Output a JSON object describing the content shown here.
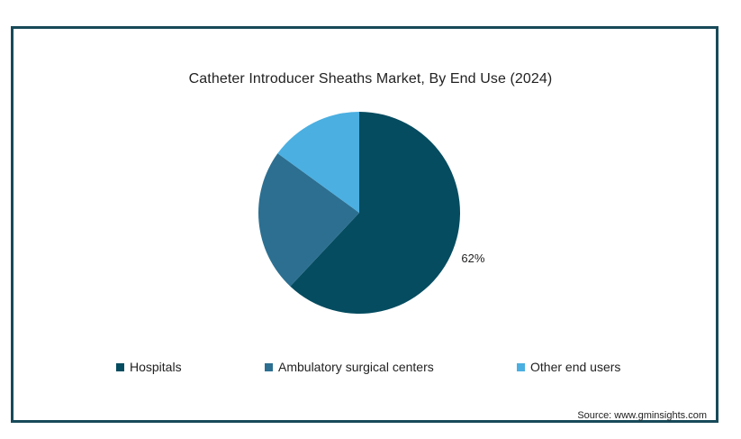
{
  "chart_data": {
    "type": "pie",
    "title": "Catheter Introducer Sheaths Market, By End Use (2024)",
    "slices": [
      {
        "name": "Hospitals",
        "value": 62,
        "label": "62%",
        "color": "#054c60"
      },
      {
        "name": "Ambulatory surgical centers",
        "value": 23,
        "label": "",
        "color": "#2c6f91"
      },
      {
        "name": "Other end users",
        "value": 15,
        "label": "",
        "color": "#4bafe1"
      }
    ],
    "legend_position": "bottom",
    "source": "Source: www.gminsights.com"
  }
}
